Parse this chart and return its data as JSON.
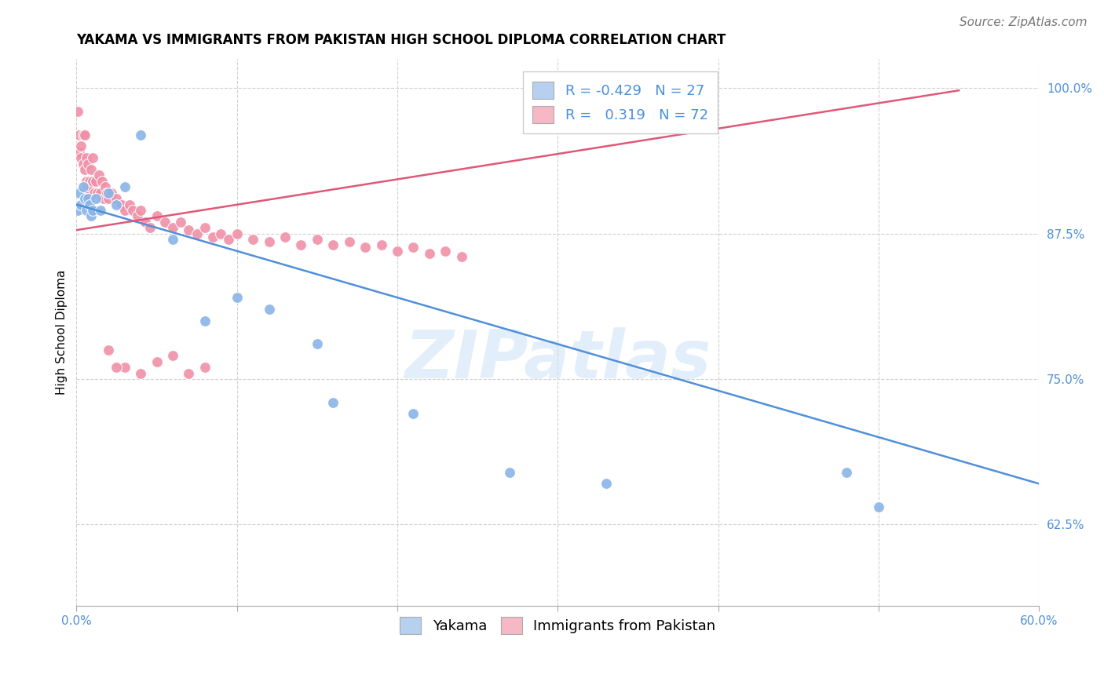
{
  "title": "YAKAMA VS IMMIGRANTS FROM PAKISTAN HIGH SCHOOL DIPLOMA CORRELATION CHART",
  "source": "Source: ZipAtlas.com",
  "ylabel": "High School Diploma",
  "watermark": "ZIPatlas",
  "xlim": [
    0.0,
    0.6
  ],
  "ylim": [
    0.555,
    1.025
  ],
  "xticks": [
    0.0,
    0.1,
    0.2,
    0.3,
    0.4,
    0.5,
    0.6
  ],
  "yticks": [
    0.625,
    0.75,
    0.875,
    1.0
  ],
  "ytick_labels": [
    "62.5%",
    "75.0%",
    "87.5%",
    "100.0%"
  ],
  "legend_entries": [
    {
      "label": "Yakama",
      "R": "-0.429",
      "N": "27",
      "color": "#b8d0f0"
    },
    {
      "label": "Immigrants from Pakistan",
      "R": "0.319",
      "N": "72",
      "color": "#f5b8c4"
    }
  ],
  "blue_scatter": [
    [
      0.001,
      0.895
    ],
    [
      0.002,
      0.91
    ],
    [
      0.003,
      0.9
    ],
    [
      0.004,
      0.915
    ],
    [
      0.005,
      0.905
    ],
    [
      0.006,
      0.895
    ],
    [
      0.007,
      0.905
    ],
    [
      0.008,
      0.9
    ],
    [
      0.009,
      0.89
    ],
    [
      0.01,
      0.895
    ],
    [
      0.012,
      0.905
    ],
    [
      0.015,
      0.895
    ],
    [
      0.02,
      0.91
    ],
    [
      0.025,
      0.9
    ],
    [
      0.03,
      0.915
    ],
    [
      0.04,
      0.96
    ],
    [
      0.06,
      0.87
    ],
    [
      0.08,
      0.8
    ],
    [
      0.1,
      0.82
    ],
    [
      0.12,
      0.81
    ],
    [
      0.15,
      0.78
    ],
    [
      0.16,
      0.73
    ],
    [
      0.21,
      0.72
    ],
    [
      0.27,
      0.67
    ],
    [
      0.33,
      0.66
    ],
    [
      0.48,
      0.67
    ],
    [
      0.5,
      0.64
    ]
  ],
  "pink_scatter": [
    [
      0.001,
      0.98
    ],
    [
      0.002,
      0.96
    ],
    [
      0.002,
      0.945
    ],
    [
      0.003,
      0.94
    ],
    [
      0.003,
      0.95
    ],
    [
      0.004,
      0.935
    ],
    [
      0.004,
      0.96
    ],
    [
      0.005,
      0.93
    ],
    [
      0.005,
      0.96
    ],
    [
      0.006,
      0.92
    ],
    [
      0.006,
      0.94
    ],
    [
      0.007,
      0.915
    ],
    [
      0.007,
      0.935
    ],
    [
      0.008,
      0.92
    ],
    [
      0.008,
      0.91
    ],
    [
      0.009,
      0.915
    ],
    [
      0.009,
      0.93
    ],
    [
      0.01,
      0.92
    ],
    [
      0.01,
      0.94
    ],
    [
      0.011,
      0.91
    ],
    [
      0.012,
      0.92
    ],
    [
      0.013,
      0.91
    ],
    [
      0.014,
      0.925
    ],
    [
      0.015,
      0.91
    ],
    [
      0.016,
      0.92
    ],
    [
      0.017,
      0.905
    ],
    [
      0.018,
      0.915
    ],
    [
      0.019,
      0.91
    ],
    [
      0.02,
      0.905
    ],
    [
      0.022,
      0.91
    ],
    [
      0.025,
      0.905
    ],
    [
      0.028,
      0.9
    ],
    [
      0.03,
      0.895
    ],
    [
      0.033,
      0.9
    ],
    [
      0.035,
      0.895
    ],
    [
      0.038,
      0.89
    ],
    [
      0.04,
      0.895
    ],
    [
      0.043,
      0.885
    ],
    [
      0.046,
      0.88
    ],
    [
      0.05,
      0.89
    ],
    [
      0.055,
      0.885
    ],
    [
      0.06,
      0.88
    ],
    [
      0.065,
      0.885
    ],
    [
      0.07,
      0.878
    ],
    [
      0.075,
      0.875
    ],
    [
      0.08,
      0.88
    ],
    [
      0.085,
      0.872
    ],
    [
      0.09,
      0.875
    ],
    [
      0.095,
      0.87
    ],
    [
      0.1,
      0.875
    ],
    [
      0.11,
      0.87
    ],
    [
      0.12,
      0.868
    ],
    [
      0.13,
      0.872
    ],
    [
      0.14,
      0.865
    ],
    [
      0.15,
      0.87
    ],
    [
      0.16,
      0.865
    ],
    [
      0.17,
      0.868
    ],
    [
      0.18,
      0.863
    ],
    [
      0.19,
      0.865
    ],
    [
      0.2,
      0.86
    ],
    [
      0.21,
      0.863
    ],
    [
      0.22,
      0.858
    ],
    [
      0.23,
      0.86
    ],
    [
      0.24,
      0.855
    ],
    [
      0.03,
      0.76
    ],
    [
      0.05,
      0.765
    ],
    [
      0.04,
      0.755
    ],
    [
      0.02,
      0.775
    ],
    [
      0.025,
      0.76
    ],
    [
      0.06,
      0.77
    ],
    [
      0.07,
      0.755
    ],
    [
      0.08,
      0.76
    ]
  ],
  "blue_line": {
    "x": [
      0.0,
      0.6
    ],
    "y": [
      0.9,
      0.66
    ]
  },
  "pink_line": {
    "x": [
      0.0,
      0.55
    ],
    "y": [
      0.878,
      0.998
    ]
  },
  "blue_color": "#8ab4e8",
  "pink_color": "#f090a8",
  "blue_line_color": "#5090d8",
  "pink_line_color": "#e05878",
  "background_color": "#ffffff",
  "grid_color": "#d0d0d0",
  "title_fontsize": 12,
  "axis_label_fontsize": 11,
  "tick_fontsize": 11,
  "legend_fontsize": 13,
  "source_fontsize": 11
}
